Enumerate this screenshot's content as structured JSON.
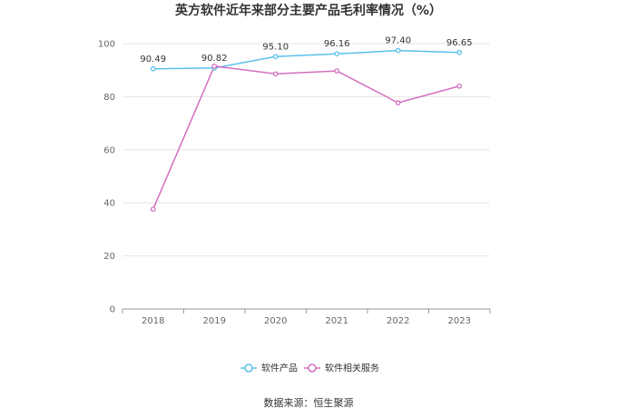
{
  "chart_data": {
    "type": "line",
    "title": "英方软件近年来部分主要产品毛利率情况（%）",
    "categories": [
      "2018",
      "2019",
      "2020",
      "2021",
      "2022",
      "2023"
    ],
    "ylim": [
      0,
      100
    ],
    "yticks": [
      0,
      20,
      40,
      60,
      80,
      100
    ],
    "grid": true,
    "legend_position": "bottom",
    "series": [
      {
        "name": "软件产品",
        "color": "#5bc0eb",
        "values": [
          90.49,
          90.82,
          95.1,
          96.16,
          97.4,
          96.65
        ],
        "labels": [
          "90.49",
          "90.82",
          "95.10",
          "96.16",
          "97.40",
          "96.65"
        ]
      },
      {
        "name": "软件相关服务",
        "color": "#d36fbf",
        "values": [
          37.6,
          91.5,
          88.6,
          89.7,
          77.7,
          84.0
        ]
      }
    ]
  },
  "footer": {
    "source": "数据来源：恒生聚源"
  }
}
